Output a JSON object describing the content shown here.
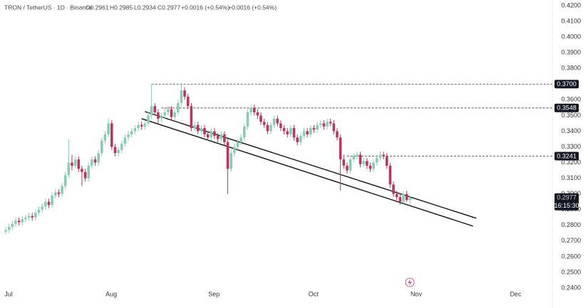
{
  "header": {
    "symbol": "TRON / TetherUS · 1D · Binance",
    "ohlc": [
      "O0.2961",
      "H0.2985",
      "L0.2934",
      "C0.2977"
    ],
    "changes": [
      "+0.0016 (+0.54%)",
      "+0.0016 (+0.54%)"
    ]
  },
  "chart_data": {
    "type": "candlestick",
    "up_color": "#8ccab5",
    "down_color": "#b23a60",
    "ylim": [
      0.24,
      0.42
    ],
    "yticks": [
      {
        "value": 0.42,
        "label": "0.4200"
      },
      {
        "value": 0.41,
        "label": "0.4100"
      },
      {
        "value": 0.4,
        "label": "0.4000"
      },
      {
        "value": 0.39,
        "label": "0.3900"
      },
      {
        "value": 0.38,
        "label": "0.3800"
      },
      {
        "value": 0.36,
        "label": "0.3600"
      },
      {
        "value": 0.35,
        "label": "0.3500"
      },
      {
        "value": 0.34,
        "label": "0.3400"
      },
      {
        "value": 0.33,
        "label": "0.3300"
      },
      {
        "value": 0.32,
        "label": "0.3200"
      },
      {
        "value": 0.31,
        "label": "0.3100"
      },
      {
        "value": 0.3,
        "label": "0.3000"
      },
      {
        "value": 0.29,
        "label": "0.2900"
      },
      {
        "value": 0.28,
        "label": "0.2800"
      },
      {
        "value": 0.27,
        "label": "0.2700"
      },
      {
        "value": 0.26,
        "label": "0.2600"
      },
      {
        "value": 0.25,
        "label": "0.2500"
      },
      {
        "value": 0.24,
        "label": "0.2400"
      }
    ],
    "xlim": [
      -1,
      165
    ],
    "xticks": [
      {
        "value": 0,
        "label": "Jul"
      },
      {
        "value": 31,
        "label": "Aug"
      },
      {
        "value": 62,
        "label": "Sep"
      },
      {
        "value": 92,
        "label": "Oct"
      },
      {
        "value": 123,
        "label": "Nov"
      },
      {
        "value": 153,
        "label": "Dec"
      }
    ],
    "levels": [
      {
        "value": 0.37,
        "label": "0.3700",
        "from": 44
      },
      {
        "value": 0.3548,
        "label": "0.3548",
        "from": 47
      },
      {
        "value": 0.3241,
        "label": "0.3241",
        "from": 103
      }
    ],
    "price_label": {
      "value": 0.2977,
      "label": "0.2977",
      "countdown": "16:15:30"
    },
    "trend_lines": [
      [
        [
          42,
          0.3525
        ],
        [
          142,
          0.2845
        ]
      ],
      [
        [
          41,
          0.348
        ],
        [
          141,
          0.2795
        ]
      ]
    ],
    "candles": [
      [
        0.276,
        0.279,
        0.274,
        0.277
      ],
      [
        0.277,
        0.281,
        0.275,
        0.279
      ],
      [
        0.279,
        0.283,
        0.277,
        0.281
      ],
      [
        0.281,
        0.285,
        0.279,
        0.283
      ],
      [
        0.283,
        0.285,
        0.28,
        0.282
      ],
      [
        0.282,
        0.286,
        0.28,
        0.284
      ],
      [
        0.284,
        0.287,
        0.282,
        0.285
      ],
      [
        0.285,
        0.288,
        0.283,
        0.286
      ],
      [
        0.286,
        0.288,
        0.283,
        0.285
      ],
      [
        0.285,
        0.29,
        0.283,
        0.288
      ],
      [
        0.288,
        0.292,
        0.286,
        0.29
      ],
      [
        0.29,
        0.294,
        0.288,
        0.292
      ],
      [
        0.292,
        0.297,
        0.29,
        0.295
      ],
      [
        0.295,
        0.297,
        0.291,
        0.293
      ],
      [
        0.293,
        0.301,
        0.291,
        0.299
      ],
      [
        0.299,
        0.303,
        0.297,
        0.301
      ],
      [
        0.301,
        0.303,
        0.298,
        0.3
      ],
      [
        0.3,
        0.307,
        0.298,
        0.305
      ],
      [
        0.305,
        0.314,
        0.303,
        0.312
      ],
      [
        0.312,
        0.335,
        0.31,
        0.32
      ],
      [
        0.32,
        0.325,
        0.315,
        0.318
      ],
      [
        0.318,
        0.324,
        0.316,
        0.322
      ],
      [
        0.322,
        0.324,
        0.314,
        0.316
      ],
      [
        0.316,
        0.318,
        0.305,
        0.314
      ],
      [
        0.314,
        0.316,
        0.308,
        0.31
      ],
      [
        0.31,
        0.32,
        0.308,
        0.318
      ],
      [
        0.318,
        0.324,
        0.316,
        0.322
      ],
      [
        0.322,
        0.324,
        0.318,
        0.32
      ],
      [
        0.32,
        0.328,
        0.318,
        0.326
      ],
      [
        0.326,
        0.336,
        0.324,
        0.334
      ],
      [
        0.334,
        0.34,
        0.332,
        0.338
      ],
      [
        0.338,
        0.348,
        0.336,
        0.345
      ],
      [
        0.345,
        0.347,
        0.328,
        0.33
      ],
      [
        0.33,
        0.332,
        0.324,
        0.326
      ],
      [
        0.326,
        0.33,
        0.324,
        0.328
      ],
      [
        0.328,
        0.334,
        0.326,
        0.332
      ],
      [
        0.332,
        0.338,
        0.33,
        0.336
      ],
      [
        0.336,
        0.34,
        0.334,
        0.338
      ],
      [
        0.338,
        0.342,
        0.336,
        0.34
      ],
      [
        0.34,
        0.344,
        0.338,
        0.342
      ],
      [
        0.342,
        0.346,
        0.34,
        0.344
      ],
      [
        0.344,
        0.346,
        0.341,
        0.343
      ],
      [
        0.343,
        0.347,
        0.341,
        0.345
      ],
      [
        0.345,
        0.352,
        0.343,
        0.35
      ],
      [
        0.35,
        0.37,
        0.348,
        0.356
      ],
      [
        0.356,
        0.358,
        0.35,
        0.352
      ],
      [
        0.352,
        0.354,
        0.345,
        0.348
      ],
      [
        0.348,
        0.352,
        0.346,
        0.35
      ],
      [
        0.35,
        0.355,
        0.348,
        0.352
      ],
      [
        0.352,
        0.356,
        0.35,
        0.354
      ],
      [
        0.354,
        0.356,
        0.347,
        0.349
      ],
      [
        0.349,
        0.354,
        0.347,
        0.352
      ],
      [
        0.352,
        0.36,
        0.35,
        0.358
      ],
      [
        0.358,
        0.37,
        0.356,
        0.366
      ],
      [
        0.366,
        0.368,
        0.36,
        0.362
      ],
      [
        0.362,
        0.364,
        0.354,
        0.356
      ],
      [
        0.356,
        0.358,
        0.34,
        0.342
      ],
      [
        0.342,
        0.346,
        0.34,
        0.344
      ],
      [
        0.344,
        0.346,
        0.338,
        0.34
      ],
      [
        0.34,
        0.344,
        0.338,
        0.342
      ],
      [
        0.342,
        0.344,
        0.336,
        0.338
      ],
      [
        0.338,
        0.34,
        0.334,
        0.336
      ],
      [
        0.336,
        0.342,
        0.334,
        0.34
      ],
      [
        0.34,
        0.342,
        0.335,
        0.337
      ],
      [
        0.337,
        0.339,
        0.333,
        0.335
      ],
      [
        0.335,
        0.34,
        0.333,
        0.338
      ],
      [
        0.338,
        0.34,
        0.331,
        0.333
      ],
      [
        0.333,
        0.335,
        0.3,
        0.316
      ],
      [
        0.316,
        0.328,
        0.314,
        0.326
      ],
      [
        0.326,
        0.332,
        0.324,
        0.33
      ],
      [
        0.33,
        0.335,
        0.328,
        0.333
      ],
      [
        0.333,
        0.338,
        0.331,
        0.336
      ],
      [
        0.336,
        0.345,
        0.334,
        0.343
      ],
      [
        0.343,
        0.354,
        0.341,
        0.352
      ],
      [
        0.352,
        0.357,
        0.35,
        0.355
      ],
      [
        0.355,
        0.357,
        0.35,
        0.352
      ],
      [
        0.352,
        0.354,
        0.348,
        0.35
      ],
      [
        0.35,
        0.352,
        0.344,
        0.346
      ],
      [
        0.346,
        0.348,
        0.342,
        0.344
      ],
      [
        0.344,
        0.346,
        0.338,
        0.34
      ],
      [
        0.34,
        0.346,
        0.338,
        0.344
      ],
      [
        0.344,
        0.35,
        0.342,
        0.348
      ],
      [
        0.348,
        0.35,
        0.343,
        0.345
      ],
      [
        0.345,
        0.347,
        0.34,
        0.342
      ],
      [
        0.342,
        0.344,
        0.338,
        0.34
      ],
      [
        0.34,
        0.342,
        0.336,
        0.338
      ],
      [
        0.338,
        0.344,
        0.336,
        0.342
      ],
      [
        0.342,
        0.344,
        0.334,
        0.336
      ],
      [
        0.336,
        0.338,
        0.331,
        0.333
      ],
      [
        0.333,
        0.339,
        0.331,
        0.337
      ],
      [
        0.337,
        0.342,
        0.335,
        0.34
      ],
      [
        0.34,
        0.342,
        0.336,
        0.338
      ],
      [
        0.338,
        0.344,
        0.336,
        0.342
      ],
      [
        0.342,
        0.344,
        0.339,
        0.341
      ],
      [
        0.341,
        0.346,
        0.339,
        0.344
      ],
      [
        0.344,
        0.347,
        0.342,
        0.345
      ],
      [
        0.345,
        0.347,
        0.341,
        0.343
      ],
      [
        0.343,
        0.348,
        0.341,
        0.346
      ],
      [
        0.346,
        0.348,
        0.343,
        0.345
      ],
      [
        0.345,
        0.347,
        0.338,
        0.34
      ],
      [
        0.34,
        0.342,
        0.334,
        0.336
      ],
      [
        0.336,
        0.338,
        0.302,
        0.322
      ],
      [
        0.322,
        0.325,
        0.316,
        0.318
      ],
      [
        0.318,
        0.32,
        0.313,
        0.315
      ],
      [
        0.315,
        0.324,
        0.313,
        0.322
      ],
      [
        0.322,
        0.326,
        0.32,
        0.324
      ],
      [
        0.324,
        0.327,
        0.322,
        0.325
      ],
      [
        0.325,
        0.327,
        0.317,
        0.319
      ],
      [
        0.319,
        0.323,
        0.317,
        0.321
      ],
      [
        0.321,
        0.323,
        0.316,
        0.318
      ],
      [
        0.318,
        0.32,
        0.314,
        0.316
      ],
      [
        0.316,
        0.322,
        0.314,
        0.32
      ],
      [
        0.32,
        0.325,
        0.318,
        0.323
      ],
      [
        0.323,
        0.327,
        0.321,
        0.325
      ],
      [
        0.325,
        0.327,
        0.322,
        0.324
      ],
      [
        0.324,
        0.326,
        0.316,
        0.318
      ],
      [
        0.318,
        0.32,
        0.304,
        0.306
      ],
      [
        0.306,
        0.308,
        0.298,
        0.3
      ],
      [
        0.3,
        0.302,
        0.296,
        0.298
      ],
      [
        0.298,
        0.3,
        0.293,
        0.295
      ],
      [
        0.295,
        0.302,
        0.294,
        0.3
      ],
      [
        0.3,
        0.302,
        0.295,
        0.2961
      ],
      [
        0.2961,
        0.2985,
        0.2934,
        0.2977
      ]
    ]
  }
}
